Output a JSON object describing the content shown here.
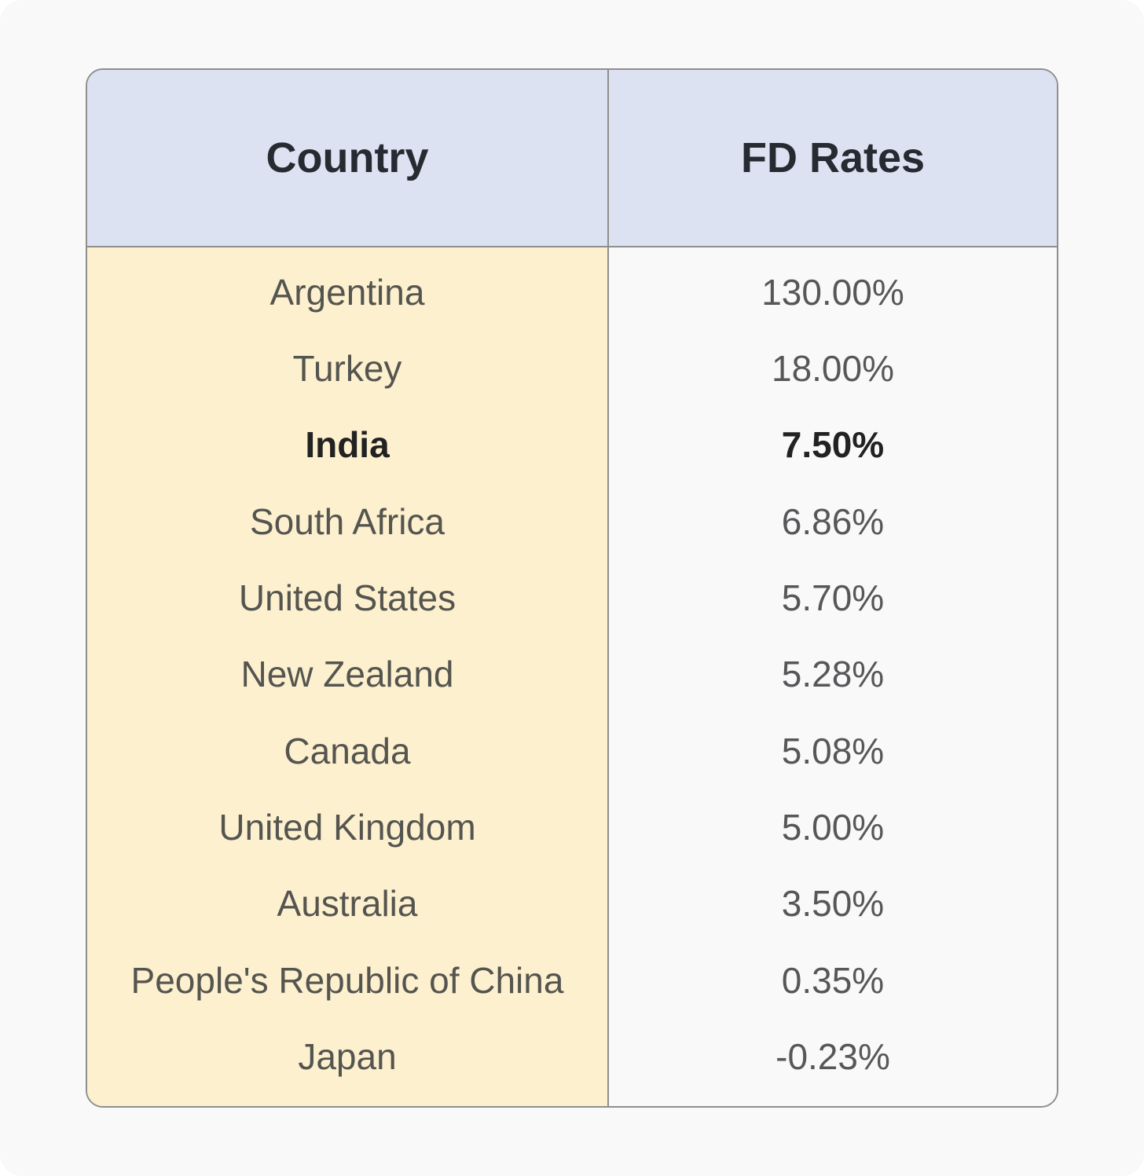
{
  "chart_data": {
    "type": "table",
    "columns": [
      "Country",
      "FD Rates"
    ],
    "rows": [
      {
        "country": "Argentina",
        "rate": "130.00%",
        "value": 130.0,
        "bold": false
      },
      {
        "country": "Turkey",
        "rate": "18.00%",
        "value": 18.0,
        "bold": false
      },
      {
        "country": "India",
        "rate": "7.50%",
        "value": 7.5,
        "bold": true
      },
      {
        "country": "South Africa",
        "rate": "6.86%",
        "value": 6.86,
        "bold": false
      },
      {
        "country": "United States",
        "rate": "5.70%",
        "value": 5.7,
        "bold": false
      },
      {
        "country": "New Zealand",
        "rate": "5.28%",
        "value": 5.28,
        "bold": false
      },
      {
        "country": "Canada",
        "rate": "5.08%",
        "value": 5.08,
        "bold": false
      },
      {
        "country": "United Kingdom",
        "rate": "5.00%",
        "value": 5.0,
        "bold": false
      },
      {
        "country": "Australia",
        "rate": "3.50%",
        "value": 3.5,
        "bold": false
      },
      {
        "country": "People's Republic of China",
        "rate": "0.35%",
        "value": 0.35,
        "bold": false
      },
      {
        "country": "Japan",
        "rate": "-0.23%",
        "value": -0.23,
        "bold": false
      }
    ],
    "colors": {
      "header_bg": "#dde2f3",
      "country_column_bg": "#fdf0cf",
      "rate_column_bg": "#f9f9f9",
      "border": "#8e8e8e"
    }
  }
}
